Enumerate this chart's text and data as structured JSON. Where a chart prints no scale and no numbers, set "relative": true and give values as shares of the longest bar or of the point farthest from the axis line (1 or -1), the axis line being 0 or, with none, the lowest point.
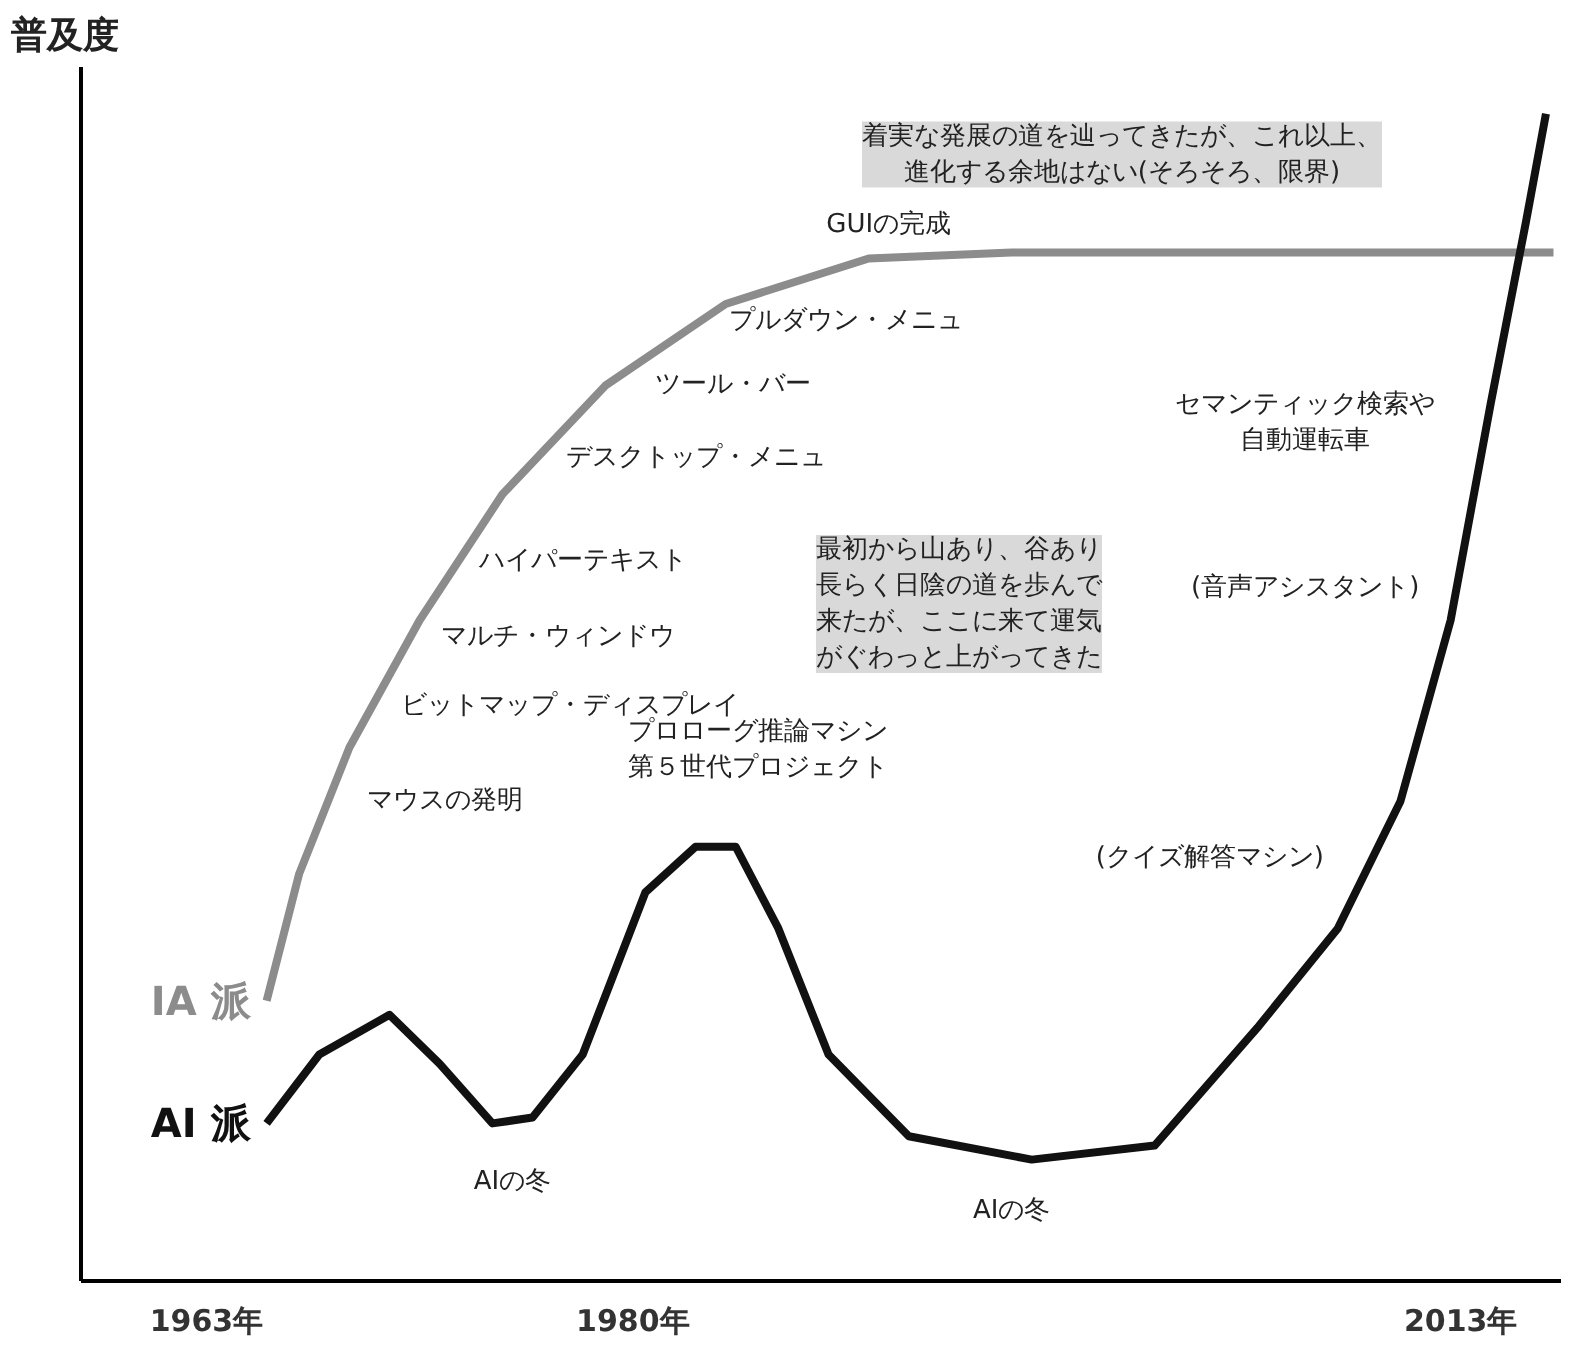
{
  "chart_data": {
    "type": "line",
    "relative": true,
    "ylabel": "普及度",
    "xlim": [
      1958,
      2017
    ],
    "xticks": [
      {
        "value": 1963,
        "label": "1963年"
      },
      {
        "value": 1980,
        "label": "1980年"
      },
      {
        "value": 2013,
        "label": "2013年"
      }
    ],
    "grid": false,
    "marker": "none",
    "line_style": "solid",
    "series": [
      {
        "name": "IA 派",
        "color": "#8c8c8c",
        "x": [
          1965.4,
          1966.7,
          1968.7,
          1971.5,
          1974.8,
          1978.9,
          1983.7,
          1989.4,
          1995.1,
          2003.2,
          2016.7
        ],
        "values": [
          0.24,
          0.349,
          0.457,
          0.566,
          0.674,
          0.767,
          0.837,
          0.876,
          0.881,
          0.881,
          0.881
        ]
      },
      {
        "name": "AI 派",
        "color": "#111111",
        "x": [
          1965.4,
          1967.5,
          1970.3,
          1972.3,
          1974.4,
          1976.0,
          1978.0,
          1980.5,
          1982.5,
          1984.1,
          1985.8,
          1987.8,
          1991.0,
          1995.9,
          2000.8,
          2004.9,
          2008.1,
          2010.6,
          2012.6,
          2014.2,
          2015.6,
          2016.4
        ],
        "values": [
          0.135,
          0.194,
          0.228,
          0.186,
          0.135,
          0.14,
          0.194,
          0.333,
          0.372,
          0.372,
          0.302,
          0.194,
          0.124,
          0.104,
          0.116,
          0.217,
          0.302,
          0.411,
          0.566,
          0.752,
          0.907,
          1.0
        ]
      }
    ],
    "annotations": [
      "着実な発展の道を辿ってきたが、これ以上、進化する余地はない(そろそろ、限界)",
      "GUIの完成",
      "プルダウン・メニュ",
      "ツール・バー",
      "デスクトップ・メニュ",
      "ハイパーテキスト",
      "マルチ・ウィンドウ",
      "ビットマップ・ディスプレイ",
      "マウスの発明",
      "プロローグ推論マシン第５世代プロジェクト",
      "最初から山あり、谷あり長らく日陰の道を歩んで来たが、ここに来て運気がぐわっと上がってきた",
      "セマンティック検索や自動運転車",
      "(音声アシスタント)",
      "(クイズ解答マシン)",
      "AIの冬",
      "AIの冬"
    ]
  }
}
